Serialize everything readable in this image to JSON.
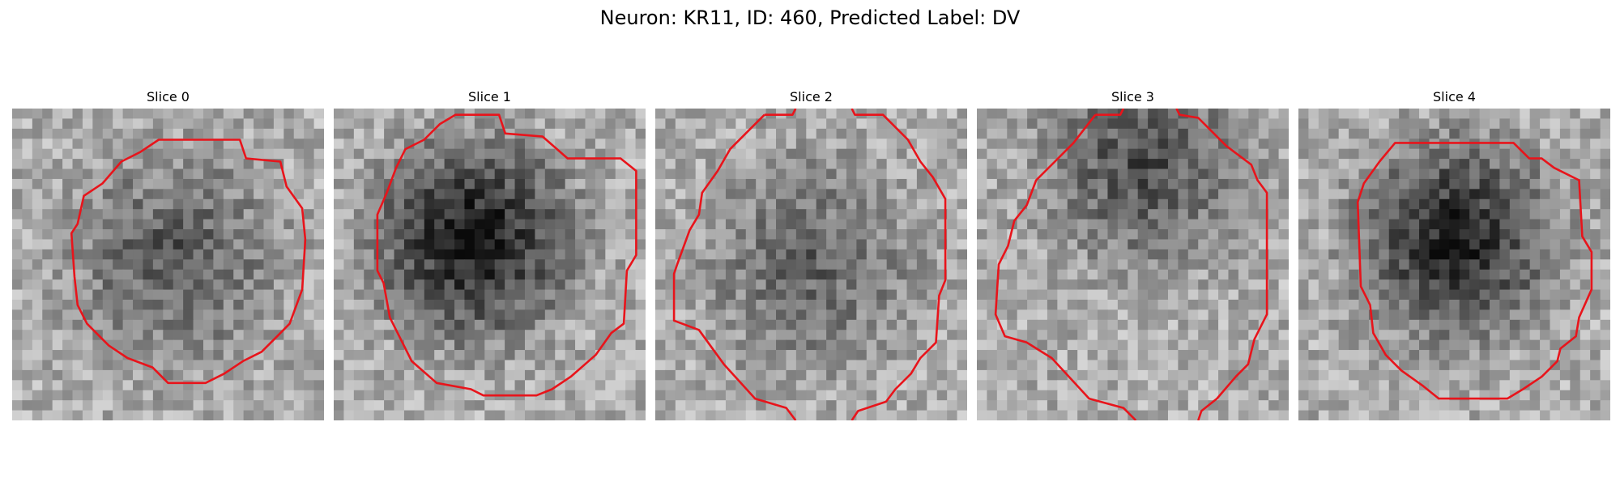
{
  "figure": {
    "title": "Neuron: KR11, ID: 460, Predicted Label: DV"
  },
  "contour_color": "#e8141b",
  "slices": [
    {
      "title": "Slice 0",
      "dark_center": [
        0.52,
        0.48
      ],
      "dark_strength": 0.25,
      "seed": 11,
      "contour": [
        [
          0.47,
          0.1
        ],
        [
          0.73,
          0.1
        ],
        [
          0.75,
          0.16
        ],
        [
          0.86,
          0.17
        ],
        [
          0.88,
          0.25
        ],
        [
          0.93,
          0.32
        ],
        [
          0.94,
          0.42
        ],
        [
          0.93,
          0.58
        ],
        [
          0.89,
          0.69
        ],
        [
          0.85,
          0.73
        ],
        [
          0.8,
          0.78
        ],
        [
          0.74,
          0.81
        ],
        [
          0.68,
          0.85
        ],
        [
          0.62,
          0.88
        ],
        [
          0.5,
          0.88
        ],
        [
          0.45,
          0.83
        ],
        [
          0.37,
          0.8
        ],
        [
          0.31,
          0.76
        ],
        [
          0.24,
          0.69
        ],
        [
          0.21,
          0.63
        ],
        [
          0.2,
          0.54
        ],
        [
          0.19,
          0.4
        ],
        [
          0.21,
          0.37
        ],
        [
          0.23,
          0.28
        ],
        [
          0.29,
          0.24
        ],
        [
          0.35,
          0.17
        ],
        [
          0.41,
          0.14
        ]
      ]
    },
    {
      "title": "Slice 1",
      "dark_center": [
        0.45,
        0.42
      ],
      "dark_strength": 0.55,
      "seed": 23,
      "contour": [
        [
          0.39,
          0.02
        ],
        [
          0.53,
          0.02
        ],
        [
          0.55,
          0.08
        ],
        [
          0.67,
          0.09
        ],
        [
          0.75,
          0.16
        ],
        [
          0.92,
          0.16
        ],
        [
          0.97,
          0.2
        ],
        [
          0.97,
          0.47
        ],
        [
          0.94,
          0.52
        ],
        [
          0.93,
          0.69
        ],
        [
          0.89,
          0.72
        ],
        [
          0.84,
          0.79
        ],
        [
          0.76,
          0.86
        ],
        [
          0.7,
          0.9
        ],
        [
          0.65,
          0.92
        ],
        [
          0.48,
          0.92
        ],
        [
          0.44,
          0.9
        ],
        [
          0.33,
          0.88
        ],
        [
          0.25,
          0.81
        ],
        [
          0.18,
          0.67
        ],
        [
          0.16,
          0.56
        ],
        [
          0.14,
          0.52
        ],
        [
          0.14,
          0.34
        ],
        [
          0.17,
          0.27
        ],
        [
          0.2,
          0.19
        ],
        [
          0.23,
          0.13
        ],
        [
          0.29,
          0.1
        ],
        [
          0.34,
          0.05
        ]
      ]
    },
    {
      "title": "Slice 2",
      "dark_center": [
        0.5,
        0.5
      ],
      "dark_strength": 0.2,
      "seed": 37,
      "contour": [
        [
          0.35,
          0.02
        ],
        [
          0.44,
          0.02
        ],
        [
          0.45,
          0.0
        ]
      ],
      "contour_b": [
        [
          0.63,
          0.0
        ],
        [
          0.64,
          0.02
        ],
        [
          0.73,
          0.02
        ],
        [
          0.81,
          0.1
        ],
        [
          0.85,
          0.17
        ],
        [
          0.89,
          0.22
        ],
        [
          0.93,
          0.29
        ],
        [
          0.93,
          0.55
        ],
        [
          0.91,
          0.6
        ],
        [
          0.9,
          0.75
        ],
        [
          0.85,
          0.8
        ],
        [
          0.82,
          0.85
        ],
        [
          0.77,
          0.9
        ],
        [
          0.74,
          0.94
        ],
        [
          0.65,
          0.97
        ],
        [
          0.63,
          1.0
        ]
      ],
      "contour_c": [
        [
          0.45,
          1.0
        ],
        [
          0.42,
          0.96
        ],
        [
          0.32,
          0.93
        ],
        [
          0.22,
          0.82
        ],
        [
          0.14,
          0.71
        ],
        [
          0.06,
          0.68
        ],
        [
          0.06,
          0.53
        ],
        [
          0.07,
          0.5
        ],
        [
          0.11,
          0.39
        ],
        [
          0.14,
          0.34
        ],
        [
          0.15,
          0.27
        ],
        [
          0.2,
          0.2
        ],
        [
          0.24,
          0.13
        ],
        [
          0.31,
          0.06
        ],
        [
          0.35,
          0.02
        ]
      ]
    },
    {
      "title": "Slice 3",
      "dark_center": [
        0.53,
        0.18
      ],
      "dark_strength": 0.3,
      "seed": 53,
      "contour": [
        [
          0.38,
          0.02
        ],
        [
          0.46,
          0.02
        ],
        [
          0.47,
          0.0
        ]
      ],
      "contour_b": [
        [
          0.64,
          0.0
        ],
        [
          0.65,
          0.02
        ],
        [
          0.71,
          0.03
        ],
        [
          0.74,
          0.06
        ],
        [
          0.8,
          0.12
        ],
        [
          0.88,
          0.18
        ],
        [
          0.9,
          0.23
        ],
        [
          0.93,
          0.27
        ],
        [
          0.93,
          0.66
        ],
        [
          0.89,
          0.74
        ],
        [
          0.87,
          0.82
        ],
        [
          0.83,
          0.86
        ],
        [
          0.77,
          0.93
        ],
        [
          0.72,
          0.97
        ],
        [
          0.71,
          1.0
        ]
      ],
      "contour_b2": [
        [
          0.51,
          1.0
        ],
        [
          0.47,
          0.96
        ],
        [
          0.36,
          0.93
        ],
        [
          0.24,
          0.8
        ],
        [
          0.16,
          0.75
        ],
        [
          0.09,
          0.73
        ],
        [
          0.06,
          0.66
        ],
        [
          0.07,
          0.5
        ],
        [
          0.1,
          0.44
        ],
        [
          0.12,
          0.36
        ],
        [
          0.16,
          0.31
        ],
        [
          0.19,
          0.23
        ],
        [
          0.25,
          0.17
        ],
        [
          0.31,
          0.11
        ],
        [
          0.38,
          0.02
        ]
      ]
    },
    {
      "title": "Slice 4",
      "dark_center": [
        0.5,
        0.42
      ],
      "dark_strength": 0.5,
      "seed": 71,
      "contour": [
        [
          0.31,
          0.11
        ],
        [
          0.69,
          0.11
        ],
        [
          0.74,
          0.16
        ],
        [
          0.78,
          0.16
        ],
        [
          0.82,
          0.19
        ],
        [
          0.9,
          0.23
        ],
        [
          0.91,
          0.41
        ],
        [
          0.94,
          0.46
        ],
        [
          0.94,
          0.58
        ],
        [
          0.9,
          0.67
        ],
        [
          0.89,
          0.73
        ],
        [
          0.84,
          0.77
        ],
        [
          0.83,
          0.81
        ],
        [
          0.78,
          0.86
        ],
        [
          0.72,
          0.9
        ],
        [
          0.67,
          0.93
        ],
        [
          0.45,
          0.93
        ],
        [
          0.4,
          0.89
        ],
        [
          0.33,
          0.84
        ],
        [
          0.28,
          0.79
        ],
        [
          0.24,
          0.72
        ],
        [
          0.23,
          0.63
        ],
        [
          0.2,
          0.57
        ],
        [
          0.19,
          0.3
        ],
        [
          0.21,
          0.24
        ],
        [
          0.26,
          0.17
        ]
      ]
    }
  ]
}
